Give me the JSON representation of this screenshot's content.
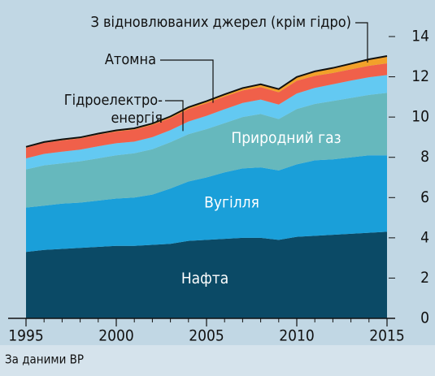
{
  "chart_data": {
    "type": "stacked_area",
    "x": [
      1995,
      1996,
      1997,
      1998,
      1999,
      2000,
      2001,
      2002,
      2003,
      2004,
      2005,
      2006,
      2007,
      2008,
      2009,
      2010,
      2011,
      2012,
      2013,
      2014,
      2015
    ],
    "xlim": [
      1995,
      2015
    ],
    "xticks": [
      1995,
      2000,
      2005,
      2010,
      2015
    ],
    "ylim": [
      0,
      14
    ],
    "yticks": [
      0,
      2,
      4,
      6,
      8,
      10,
      12,
      14
    ],
    "grid": false,
    "source": "За даними BP",
    "series": [
      {
        "name": "Нафта",
        "color": "#0b4a66",
        "values": [
          3.3,
          3.4,
          3.45,
          3.5,
          3.55,
          3.6,
          3.6,
          3.65,
          3.7,
          3.85,
          3.9,
          3.95,
          4.0,
          4.0,
          3.9,
          4.05,
          4.1,
          4.15,
          4.2,
          4.25,
          4.3
        ]
      },
      {
        "name": "Вугілля",
        "color": "#1a9fd9",
        "values": [
          2.2,
          2.2,
          2.25,
          2.25,
          2.3,
          2.35,
          2.4,
          2.5,
          2.75,
          2.95,
          3.1,
          3.3,
          3.45,
          3.5,
          3.45,
          3.6,
          3.75,
          3.75,
          3.8,
          3.85,
          3.8
        ]
      },
      {
        "name": "Природний газ",
        "color": "#66b8bd",
        "values": [
          1.9,
          2.0,
          2.0,
          2.05,
          2.1,
          2.15,
          2.2,
          2.25,
          2.3,
          2.35,
          2.4,
          2.45,
          2.55,
          2.65,
          2.55,
          2.75,
          2.8,
          2.9,
          2.95,
          3.0,
          3.1
        ]
      },
      {
        "name": [
          "Гідроелектро-",
          "енергія"
        ],
        "color": "#63c9f2",
        "values": [
          0.55,
          0.57,
          0.58,
          0.58,
          0.6,
          0.6,
          0.58,
          0.6,
          0.6,
          0.63,
          0.66,
          0.69,
          0.7,
          0.72,
          0.72,
          0.77,
          0.8,
          0.83,
          0.86,
          0.88,
          0.89
        ]
      },
      {
        "name": "Атомна",
        "color": "#f0604a",
        "values": [
          0.53,
          0.55,
          0.56,
          0.56,
          0.58,
          0.58,
          0.6,
          0.61,
          0.6,
          0.62,
          0.63,
          0.63,
          0.62,
          0.62,
          0.61,
          0.63,
          0.6,
          0.56,
          0.56,
          0.57,
          0.58
        ]
      },
      {
        "name": "З відновлюваних джерел (крім гідро)",
        "color": "#f2a12a",
        "values": [
          0.04,
          0.04,
          0.05,
          0.05,
          0.05,
          0.06,
          0.06,
          0.07,
          0.08,
          0.09,
          0.1,
          0.11,
          0.12,
          0.14,
          0.16,
          0.19,
          0.22,
          0.25,
          0.28,
          0.32,
          0.36
        ]
      }
    ]
  }
}
